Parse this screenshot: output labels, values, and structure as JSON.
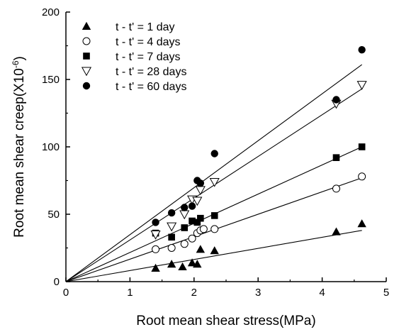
{
  "chart_data": {
    "type": "scatter",
    "title": "",
    "xlabel": "Root mean shear stress(MPa)",
    "ylabel_main": "Root mean shear creep(X10",
    "ylabel_exp": "-6",
    "ylabel_close": ")",
    "xlim": [
      0,
      5
    ],
    "ylim": [
      0,
      200
    ],
    "xticks": [
      0,
      1,
      2,
      3,
      4,
      5
    ],
    "yticks": [
      0,
      50,
      100,
      150,
      200
    ],
    "grid": false,
    "legend_position": "top-left",
    "series": [
      {
        "name": "t - t' = 1 day",
        "marker": "triangle-up-filled",
        "points": [
          [
            1.4,
            10
          ],
          [
            1.65,
            13
          ],
          [
            1.82,
            11
          ],
          [
            1.97,
            14
          ],
          [
            2.05,
            13
          ],
          [
            2.1,
            24
          ],
          [
            2.32,
            23
          ],
          [
            4.22,
            37
          ],
          [
            4.62,
            43
          ]
        ],
        "fit": [
          [
            0,
            0
          ],
          [
            4.62,
            38
          ]
        ]
      },
      {
        "name": "t - t' = 4 days",
        "marker": "circle-open",
        "points": [
          [
            1.4,
            24
          ],
          [
            1.65,
            25
          ],
          [
            1.85,
            28
          ],
          [
            1.97,
            32
          ],
          [
            2.05,
            36
          ],
          [
            2.1,
            38
          ],
          [
            2.15,
            39
          ],
          [
            2.32,
            39
          ],
          [
            4.22,
            69
          ],
          [
            4.62,
            78
          ]
        ],
        "fit": [
          [
            0,
            0
          ],
          [
            4.62,
            77
          ]
        ]
      },
      {
        "name": "t - t' = 7 days",
        "marker": "square-filled",
        "points": [
          [
            1.4,
            36
          ],
          [
            1.65,
            33
          ],
          [
            1.85,
            40
          ],
          [
            1.97,
            45
          ],
          [
            2.05,
            44
          ],
          [
            2.1,
            47
          ],
          [
            2.32,
            49
          ],
          [
            4.22,
            92
          ],
          [
            4.62,
            100
          ]
        ],
        "fit": [
          [
            0,
            0
          ],
          [
            4.62,
            100
          ]
        ]
      },
      {
        "name": "t - t' = 28 days",
        "marker": "triangle-down-open",
        "points": [
          [
            1.4,
            35
          ],
          [
            1.65,
            41
          ],
          [
            1.85,
            50
          ],
          [
            1.97,
            61
          ],
          [
            2.05,
            60
          ],
          [
            2.1,
            68
          ],
          [
            2.32,
            74
          ],
          [
            4.22,
            132
          ],
          [
            4.62,
            146
          ]
        ],
        "fit": [
          [
            0,
            0
          ],
          [
            4.62,
            143
          ]
        ]
      },
      {
        "name": "t - t' = 60 days",
        "marker": "circle-filled",
        "points": [
          [
            1.4,
            44
          ],
          [
            1.65,
            51
          ],
          [
            1.85,
            55
          ],
          [
            1.97,
            56
          ],
          [
            2.05,
            75
          ],
          [
            2.1,
            73
          ],
          [
            2.32,
            95
          ],
          [
            4.22,
            135
          ],
          [
            4.62,
            172
          ]
        ],
        "fit": [
          [
            0,
            0
          ],
          [
            4.62,
            161
          ]
        ]
      }
    ]
  }
}
